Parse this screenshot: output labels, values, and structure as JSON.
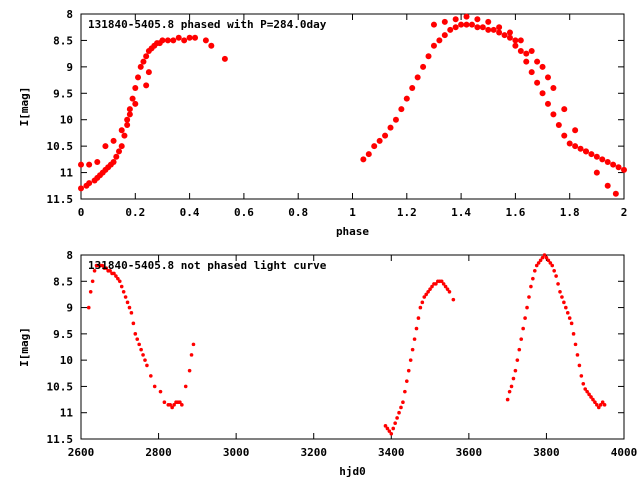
{
  "chart_data": [
    {
      "type": "scatter",
      "title": "131840-5405.8 phased with P=284.0day",
      "xlabel": "phase",
      "ylabel": "I[mag]",
      "xlim": [
        0,
        2
      ],
      "ylim": [
        11.5,
        8
      ],
      "y_inverted": true,
      "xticks": [
        0,
        0.2,
        0.4,
        0.6,
        0.8,
        1,
        1.2,
        1.4,
        1.6,
        1.8,
        2
      ],
      "xtick_labels": [
        "0",
        "0.2",
        "0.4",
        "0.6",
        "0.8",
        "1",
        "1.2",
        "1.4",
        "1.6",
        "1.8",
        "2"
      ],
      "yticks": [
        8,
        8.5,
        9,
        9.5,
        10,
        10.5,
        11,
        11.5
      ],
      "ytick_labels": [
        "8",
        "8.5",
        "9",
        "9.5",
        "10",
        "10.5",
        "11",
        "11.5"
      ],
      "grid": false,
      "marker_color": "#ff0000",
      "series": [
        {
          "x": [
            0.0,
            0.02,
            0.03,
            0.05,
            0.06,
            0.07,
            0.08,
            0.09,
            0.1,
            0.11,
            0.12,
            0.13,
            0.14,
            0.15,
            0.16,
            0.17,
            0.18,
            0.19,
            0.2,
            0.21,
            0.22,
            0.23,
            0.24,
            0.25,
            0.26,
            0.27,
            0.28,
            0.29,
            0.3,
            0.32,
            0.34,
            0.36,
            0.38,
            0.4,
            0.42,
            0.46,
            0.48,
            0.53,
            0.0,
            0.03,
            0.06,
            0.09,
            0.12,
            0.15,
            0.17,
            0.18,
            0.2,
            0.24,
            0.25,
            1.04,
            1.06,
            1.08,
            1.1,
            1.12,
            1.14,
            1.16,
            1.18,
            1.2,
            1.22,
            1.24,
            1.26,
            1.28,
            1.3,
            1.32,
            1.34,
            1.36,
            1.38,
            1.4,
            1.42,
            1.44,
            1.46,
            1.48,
            1.5,
            1.52,
            1.54,
            1.56,
            1.58,
            1.6,
            1.62,
            1.64,
            1.66,
            1.68,
            1.7,
            1.72,
            1.74,
            1.76,
            1.78,
            1.8,
            1.82,
            1.84,
            1.86,
            1.88,
            1.9,
            1.92,
            1.94,
            1.96,
            1.98,
            2.0,
            1.3,
            1.34,
            1.38,
            1.42,
            1.46,
            1.5,
            1.54,
            1.58,
            1.62,
            1.66,
            1.7,
            1.74,
            1.78,
            1.82,
            1.86,
            1.9,
            1.94,
            1.97,
            1.6,
            1.64,
            1.68,
            1.72
          ],
          "y": [
            11.3,
            11.25,
            11.2,
            11.15,
            11.1,
            11.05,
            11.0,
            10.95,
            10.9,
            10.85,
            10.8,
            10.7,
            10.6,
            10.5,
            10.3,
            10.0,
            9.8,
            9.6,
            9.4,
            9.2,
            9.0,
            8.9,
            8.8,
            8.7,
            8.65,
            8.6,
            8.55,
            8.55,
            8.5,
            8.5,
            8.5,
            8.45,
            8.5,
            8.45,
            8.45,
            8.5,
            8.6,
            8.85,
            10.85,
            10.85,
            10.8,
            10.5,
            10.4,
            10.2,
            10.1,
            9.9,
            9.7,
            9.35,
            9.1,
            10.75,
            10.65,
            10.5,
            10.4,
            10.3,
            10.15,
            10.0,
            9.8,
            9.6,
            9.4,
            9.2,
            9.0,
            8.8,
            8.6,
            8.5,
            8.4,
            8.3,
            8.25,
            8.2,
            8.2,
            8.2,
            8.25,
            8.25,
            8.3,
            8.3,
            8.35,
            8.4,
            8.45,
            8.5,
            8.7,
            8.9,
            9.1,
            9.3,
            9.5,
            9.7,
            9.9,
            10.1,
            10.3,
            10.45,
            10.5,
            10.55,
            10.6,
            10.65,
            10.7,
            10.75,
            10.8,
            10.85,
            10.9,
            10.95,
            8.2,
            8.15,
            8.1,
            8.05,
            8.1,
            8.15,
            8.25,
            8.35,
            8.5,
            8.7,
            9.0,
            9.4,
            9.8,
            10.2,
            10.6,
            11.0,
            11.25,
            11.4,
            8.6,
            8.75,
            8.9,
            9.2
          ]
        }
      ]
    },
    {
      "type": "scatter",
      "title": "131840-5405.8 not phased light curve",
      "xlabel": "hjd0",
      "ylabel": "I[mag]",
      "xlim": [
        2600,
        4000
      ],
      "ylim": [
        11.5,
        8
      ],
      "y_inverted": true,
      "xticks": [
        2600,
        2800,
        3000,
        3200,
        3400,
        3600,
        3800,
        4000
      ],
      "xtick_labels": [
        "2600",
        "2800",
        "3000",
        "3200",
        "3400",
        "3600",
        "3800",
        "4000"
      ],
      "yticks": [
        8,
        8.5,
        9,
        9.5,
        10,
        10.5,
        11,
        11.5
      ],
      "ytick_labels": [
        "8",
        "8.5",
        "9",
        "9.5",
        "10",
        "10.5",
        "11",
        "11.5"
      ],
      "grid": false,
      "marker_color": "#ff0000",
      "series": [
        {
          "x": [
            2620,
            2625,
            2630,
            2635,
            2640,
            2645,
            2650,
            2655,
            2660,
            2665,
            2670,
            2675,
            2680,
            2685,
            2690,
            2695,
            2700,
            2705,
            2710,
            2715,
            2720,
            2725,
            2730,
            2735,
            2740,
            2745,
            2750,
            2755,
            2760,
            2765,
            2770,
            2780,
            2790,
            2805,
            2815,
            2825,
            2830,
            2835,
            2840,
            2845,
            2850,
            2855,
            2860,
            2870,
            2880,
            2885,
            2890,
            3385,
            3390,
            3395,
            3400,
            3405,
            3410,
            3415,
            3420,
            3425,
            3430,
            3435,
            3440,
            3445,
            3450,
            3455,
            3460,
            3465,
            3470,
            3475,
            3480,
            3485,
            3490,
            3495,
            3500,
            3505,
            3510,
            3515,
            3520,
            3525,
            3530,
            3535,
            3540,
            3545,
            3550,
            3560,
            3700,
            3705,
            3710,
            3715,
            3720,
            3725,
            3730,
            3735,
            3740,
            3745,
            3750,
            3755,
            3760,
            3765,
            3770,
            3775,
            3780,
            3785,
            3790,
            3795,
            3800,
            3805,
            3810,
            3815,
            3820,
            3825,
            3830,
            3835,
            3840,
            3845,
            3850,
            3855,
            3860,
            3865,
            3870,
            3875,
            3880,
            3885,
            3890,
            3895,
            3900,
            3905,
            3910,
            3915,
            3920,
            3925,
            3930,
            3935,
            3940,
            3945,
            3950
          ],
          "y": [
            9.0,
            8.7,
            8.5,
            8.3,
            8.2,
            8.2,
            8.2,
            8.2,
            8.25,
            8.25,
            8.3,
            8.3,
            8.35,
            8.35,
            8.4,
            8.45,
            8.5,
            8.6,
            8.7,
            8.8,
            8.9,
            9.0,
            9.1,
            9.3,
            9.5,
            9.6,
            9.7,
            9.8,
            9.9,
            10.0,
            10.1,
            10.3,
            10.5,
            10.6,
            10.8,
            10.85,
            10.85,
            10.9,
            10.85,
            10.8,
            10.8,
            10.8,
            10.85,
            10.5,
            10.2,
            9.9,
            9.7,
            11.25,
            11.3,
            11.35,
            11.4,
            11.3,
            11.2,
            11.1,
            11.0,
            10.9,
            10.8,
            10.6,
            10.4,
            10.2,
            10.0,
            9.8,
            9.6,
            9.4,
            9.2,
            9.0,
            8.9,
            8.8,
            8.75,
            8.7,
            8.65,
            8.6,
            8.55,
            8.55,
            8.5,
            8.5,
            8.5,
            8.55,
            8.6,
            8.65,
            8.7,
            8.85,
            10.75,
            10.6,
            10.5,
            10.35,
            10.2,
            10.0,
            9.8,
            9.6,
            9.4,
            9.2,
            9.0,
            8.8,
            8.6,
            8.45,
            8.3,
            8.2,
            8.15,
            8.1,
            8.05,
            8.0,
            8.05,
            8.1,
            8.15,
            8.2,
            8.3,
            8.4,
            8.55,
            8.7,
            8.8,
            8.9,
            9.0,
            9.1,
            9.2,
            9.3,
            9.5,
            9.7,
            9.9,
            10.1,
            10.3,
            10.45,
            10.55,
            10.6,
            10.65,
            10.7,
            10.75,
            10.8,
            10.85,
            10.9,
            10.85,
            10.8,
            10.85
          ]
        }
      ]
    }
  ]
}
